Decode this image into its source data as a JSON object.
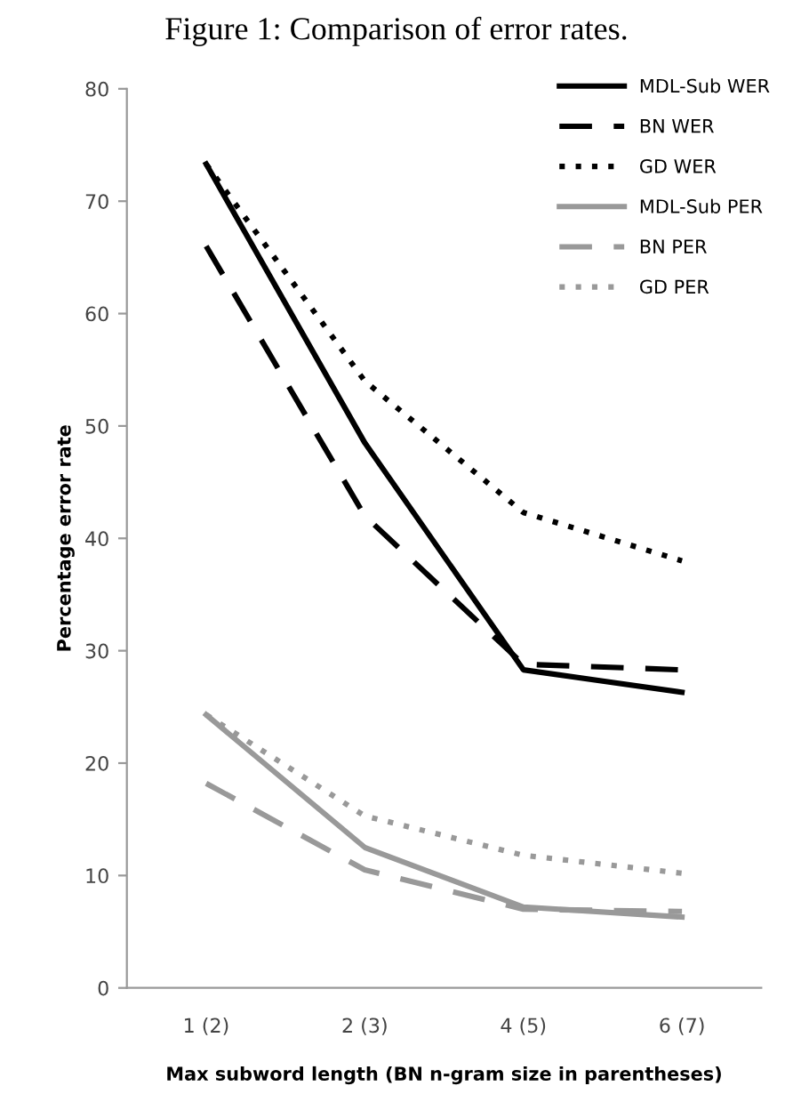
{
  "chart_data": {
    "type": "line",
    "title": "Figure 1: Comparison of error rates.",
    "xlabel": "Max subword length (BN n-gram size in parentheses)",
    "ylabel": "Percentage error rate",
    "categories": [
      "1 (2)",
      "2 (3)",
      "4 (5)",
      "6 (7)"
    ],
    "ylim": [
      0,
      80
    ],
    "yticks": [
      0,
      10,
      20,
      30,
      40,
      50,
      60,
      70,
      80
    ],
    "grid": false,
    "legend": "top right",
    "marker": "none",
    "series": [
      {
        "name": "MDL-Sub WER",
        "color": "#000000",
        "line_style": "solid",
        "values": [
          73.3,
          48.5,
          28.3,
          26.3
        ]
      },
      {
        "name": "BN WER",
        "color": "#000000",
        "line_style": "dashed",
        "values": [
          66,
          42,
          28.8,
          28.3
        ]
      },
      {
        "name": "GD WER",
        "color": "#000000",
        "line_style": "dotted",
        "values": [
          73.3,
          54,
          42.3,
          38
        ]
      },
      {
        "name": "MDL-Sub PER",
        "color": "#999999",
        "line_style": "solid",
        "values": [
          24.3,
          12.5,
          7.2,
          6.3
        ]
      },
      {
        "name": "BN PER",
        "color": "#999999",
        "line_style": "dashed",
        "values": [
          18.2,
          10.5,
          7,
          6.8
        ]
      },
      {
        "name": "GD PER",
        "color": "#999999",
        "line_style": "dotted",
        "values": [
          24.3,
          15.3,
          11.8,
          10.2
        ]
      }
    ]
  }
}
